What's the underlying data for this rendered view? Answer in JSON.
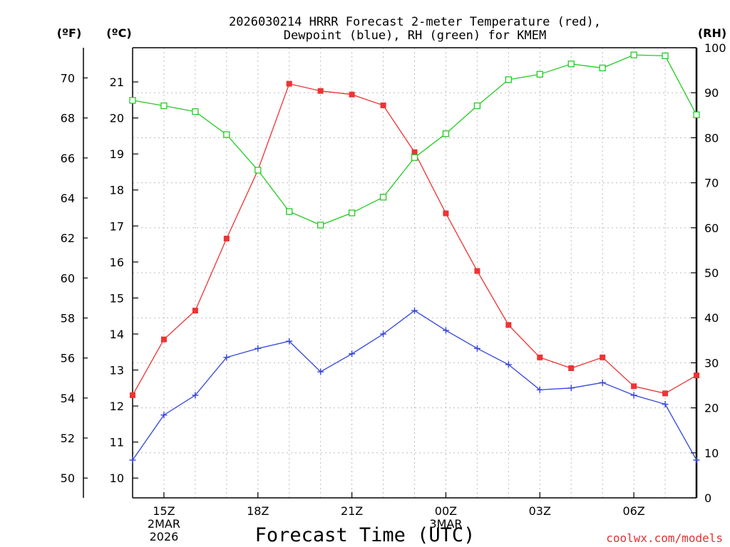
{
  "chart_data": {
    "type": "line",
    "title": "2026030214 HRRR Forecast 2-meter Temperature (red),",
    "subtitle": "Dewpoint (blue), RH (green) for KMEM",
    "xlabel": "Forecast Time (UTC)",
    "unit_labels": {
      "fahrenheit": "(ºF)",
      "celsius": "(ºC)",
      "rh": "(RH)"
    },
    "watermark": "coolwx.com/models",
    "x_hours": [
      14,
      15,
      16,
      17,
      18,
      19,
      20,
      21,
      22,
      23,
      24,
      25,
      26,
      27,
      28,
      29,
      30,
      31,
      32
    ],
    "x_ticks": [
      {
        "hour": 15,
        "label": "15Z",
        "date": "2MAR",
        "year": "2026"
      },
      {
        "hour": 18,
        "label": "18Z"
      },
      {
        "hour": 21,
        "label": "21Z"
      },
      {
        "hour": 24,
        "label": "00Z",
        "date": "3MAR"
      },
      {
        "hour": 27,
        "label": "03Z"
      },
      {
        "hour": 30,
        "label": "06Z"
      }
    ],
    "celsius_ticks": [
      10,
      11,
      12,
      13,
      14,
      15,
      16,
      17,
      18,
      19,
      20,
      21
    ],
    "fahrenheit_ticks": [
      50,
      52,
      54,
      56,
      58,
      60,
      62,
      64,
      66,
      68,
      70
    ],
    "rh_ticks": [
      0,
      10,
      20,
      30,
      40,
      50,
      60,
      70,
      80,
      90,
      100
    ],
    "ylim_celsius": [
      9.45,
      21.95
    ],
    "ylim_rh": [
      0,
      100
    ],
    "series": [
      {
        "name": "Temperature (°C)",
        "color": "#ee3333",
        "marker": "filled-square",
        "axis": "celsius",
        "values": [
          12.3,
          13.85,
          14.65,
          16.65,
          18.55,
          20.95,
          20.75,
          20.65,
          20.35,
          19.05,
          17.35,
          15.75,
          14.25,
          13.35,
          13.05,
          13.35,
          12.55,
          12.35,
          12.85
        ]
      },
      {
        "name": "Dewpoint (°C)",
        "color": "#3344dd",
        "marker": "plus",
        "axis": "celsius",
        "values": [
          10.5,
          11.75,
          12.3,
          13.35,
          13.6,
          13.8,
          12.95,
          13.45,
          14.0,
          14.65,
          14.1,
          13.6,
          13.15,
          12.45,
          12.5,
          12.65,
          12.3,
          12.05,
          10.5
        ]
      },
      {
        "name": "RH (%)",
        "color": "#22cc22",
        "marker": "open-square",
        "axis": "rh",
        "values": [
          88.3,
          87.1,
          85.8,
          80.7,
          72.8,
          63.6,
          60.6,
          63.3,
          66.8,
          75.6,
          80.9,
          87.1,
          92.9,
          94.1,
          96.4,
          95.5,
          98.4,
          98.2,
          85.1
        ]
      }
    ]
  }
}
